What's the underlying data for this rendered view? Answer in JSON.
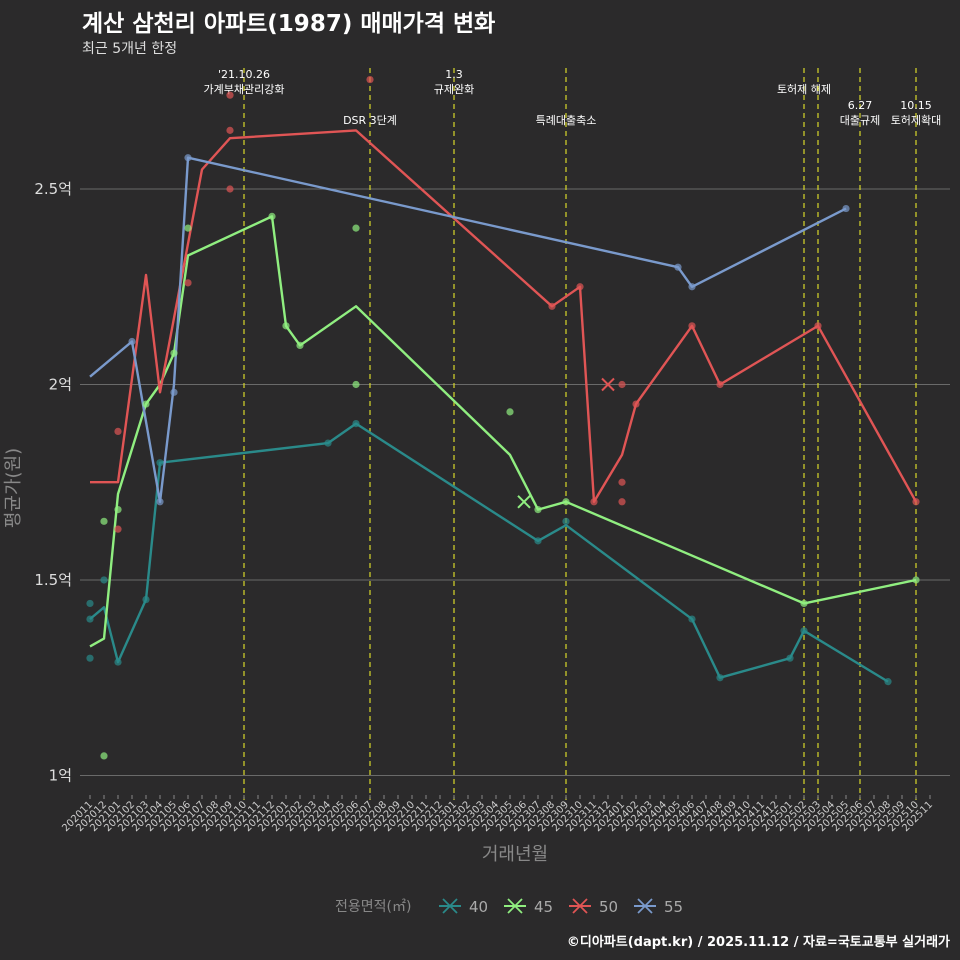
{
  "title": "계산 삼천리 아파트(1987) 매매가격 변화",
  "subtitle": "최근 5개년 한정",
  "caption": "©디아파트(dapt.kr) / 2025.11.12 / 자료=국토교통부 실거래가",
  "chart_data": {
    "type": "line",
    "title": "계산 삼천리 아파트(1987) 매매가격 변화",
    "subtitle": "최근 5개년 한정",
    "xlabel": "거래년월",
    "ylabel": "평균가(원)",
    "ylim": [
      0.95,
      2.83
    ],
    "y_ticks": [
      {
        "value": 1.0,
        "label": "1억"
      },
      {
        "value": 1.5,
        "label": "1.5억"
      },
      {
        "value": 2.0,
        "label": "2억"
      },
      {
        "value": 2.5,
        "label": "2.5억"
      }
    ],
    "categories": [
      "202011",
      "202012",
      "202101",
      "202102",
      "202103",
      "202104",
      "202105",
      "202106",
      "202107",
      "202108",
      "202109",
      "202110",
      "202111",
      "202112",
      "202201",
      "202202",
      "202203",
      "202204",
      "202205",
      "202206",
      "202207",
      "202208",
      "202209",
      "202210",
      "202211",
      "202212",
      "202301",
      "202302",
      "202303",
      "202304",
      "202305",
      "202306",
      "202307",
      "202308",
      "202309",
      "202310",
      "202311",
      "202312",
      "202401",
      "202402",
      "202403",
      "202404",
      "202405",
      "202406",
      "202407",
      "202408",
      "202409",
      "202410",
      "202411",
      "202412",
      "202501",
      "202502",
      "202503",
      "202504",
      "202505",
      "202506",
      "202507",
      "202508",
      "202509",
      "202510",
      "202511"
    ],
    "legend_title": "전용면적(㎡)",
    "events": [
      {
        "x": "202110",
        "lines": [
          "'21.10.26",
          "가계부채관리강화"
        ],
        "level": 1
      },
      {
        "x": "202207",
        "lines": [
          "DSR 3단계"
        ],
        "level": 2
      },
      {
        "x": "202301",
        "lines": [
          "1.3",
          "규제완화"
        ],
        "level": 1
      },
      {
        "x": "202309",
        "lines": [
          "특례대출축소"
        ],
        "level": 2
      },
      {
        "x": "202502",
        "lines": [
          "토허제 해제"
        ],
        "level": 1
      },
      {
        "x": "202503",
        "lines": [],
        "level": 1
      },
      {
        "x": "202506",
        "lines": [
          "6.27",
          "대출규제"
        ],
        "level": 2
      },
      {
        "x": "202510",
        "lines": [
          "10.15",
          "토허제확대"
        ],
        "level": 2
      }
    ],
    "series": [
      {
        "name": "40",
        "color": "#2a8a8a",
        "line": [
          [
            "202011",
            1.4
          ],
          [
            "202012",
            1.43
          ],
          [
            "202101",
            1.29
          ],
          [
            "202103",
            1.45
          ],
          [
            "202104",
            1.8
          ],
          [
            "202204",
            1.85
          ],
          [
            "202206",
            1.9
          ],
          [
            "202307",
            1.6
          ],
          [
            "202309",
            1.64
          ],
          [
            "202406",
            1.4
          ],
          [
            "202408",
            1.25
          ],
          [
            "202501",
            1.3
          ],
          [
            "202502",
            1.37
          ],
          [
            "202508",
            1.24
          ]
        ],
        "points": [
          [
            "202011",
            1.44
          ],
          [
            "202011",
            1.4
          ],
          [
            "202011",
            1.3
          ],
          [
            "202012",
            1.5
          ],
          [
            "202101",
            1.29
          ],
          [
            "202103",
            1.45
          ],
          [
            "202104",
            1.8
          ],
          [
            "202204",
            1.85
          ],
          [
            "202206",
            1.9
          ],
          [
            "202307",
            1.6
          ],
          [
            "202309",
            1.65
          ],
          [
            "202406",
            1.4
          ],
          [
            "202408",
            1.25
          ],
          [
            "202501",
            1.3
          ],
          [
            "202502",
            1.37
          ],
          [
            "202508",
            1.24
          ]
        ],
        "crosses": []
      },
      {
        "name": "45",
        "color": "#90ee80",
        "line": [
          [
            "202011",
            1.33
          ],
          [
            "202012",
            1.35
          ],
          [
            "202101",
            1.72
          ],
          [
            "202103",
            1.95
          ],
          [
            "202104",
            2.0
          ],
          [
            "202105",
            2.08
          ],
          [
            "202106",
            2.33
          ],
          [
            "202112",
            2.43
          ],
          [
            "202201",
            2.15
          ],
          [
            "202202",
            2.1
          ],
          [
            "202206",
            2.2
          ],
          [
            "202305",
            1.82
          ],
          [
            "202307",
            1.68
          ],
          [
            "202309",
            1.7
          ],
          [
            "202502",
            1.44
          ],
          [
            "202510",
            1.5
          ]
        ],
        "points": [
          [
            "202012",
            1.65
          ],
          [
            "202012",
            1.05
          ],
          [
            "202101",
            1.68
          ],
          [
            "202103",
            1.95
          ],
          [
            "202105",
            2.08
          ],
          [
            "202106",
            2.4
          ],
          [
            "202112",
            2.43
          ],
          [
            "202201",
            2.15
          ],
          [
            "202202",
            2.1
          ],
          [
            "202206",
            2.4
          ],
          [
            "202206",
            2.0
          ],
          [
            "202305",
            1.93
          ],
          [
            "202307",
            1.68
          ],
          [
            "202309",
            1.7
          ],
          [
            "202502",
            1.44
          ],
          [
            "202510",
            1.5
          ]
        ],
        "crosses": [
          [
            "202306",
            1.7
          ]
        ]
      },
      {
        "name": "50",
        "color": "#e05555",
        "line": [
          [
            "202011",
            1.75
          ],
          [
            "202101",
            1.75
          ],
          [
            "202103",
            2.28
          ],
          [
            "202104",
            1.98
          ],
          [
            "202107",
            2.55
          ],
          [
            "202109",
            2.63
          ],
          [
            "202206",
            2.65
          ],
          [
            "202308",
            2.2
          ],
          [
            "202310",
            2.25
          ],
          [
            "202311",
            1.7
          ],
          [
            "202401",
            1.82
          ],
          [
            "202402",
            1.95
          ],
          [
            "202406",
            2.15
          ],
          [
            "202408",
            2.0
          ],
          [
            "202503",
            2.15
          ],
          [
            "202510",
            1.7
          ]
        ],
        "points": [
          [
            "202101",
            1.88
          ],
          [
            "202101",
            1.63
          ],
          [
            "202106",
            2.26
          ],
          [
            "202109",
            2.74
          ],
          [
            "202109",
            2.65
          ],
          [
            "202109",
            2.5
          ],
          [
            "202207",
            2.78
          ],
          [
            "202308",
            2.2
          ],
          [
            "202310",
            2.25
          ],
          [
            "202311",
            1.7
          ],
          [
            "202401",
            2.0
          ],
          [
            "202401",
            1.75
          ],
          [
            "202401",
            1.7
          ],
          [
            "202402",
            1.95
          ],
          [
            "202406",
            2.15
          ],
          [
            "202408",
            2.0
          ],
          [
            "202503",
            2.15
          ],
          [
            "202510",
            1.7
          ]
        ],
        "crosses": [
          [
            "202312",
            2.0
          ]
        ]
      },
      {
        "name": "55",
        "color": "#7a9acc",
        "line": [
          [
            "202011",
            2.02
          ],
          [
            "202102",
            2.11
          ],
          [
            "202104",
            1.7
          ],
          [
            "202105",
            2.0
          ],
          [
            "202106",
            2.58
          ],
          [
            "202405",
            2.3
          ],
          [
            "202406",
            2.25
          ],
          [
            "202505",
            2.45
          ]
        ],
        "points": [
          [
            "202102",
            2.11
          ],
          [
            "202104",
            1.7
          ],
          [
            "202105",
            1.98
          ],
          [
            "202106",
            2.58
          ],
          [
            "202405",
            2.3
          ],
          [
            "202406",
            2.25
          ],
          [
            "202505",
            2.45
          ]
        ],
        "crosses": []
      }
    ]
  }
}
